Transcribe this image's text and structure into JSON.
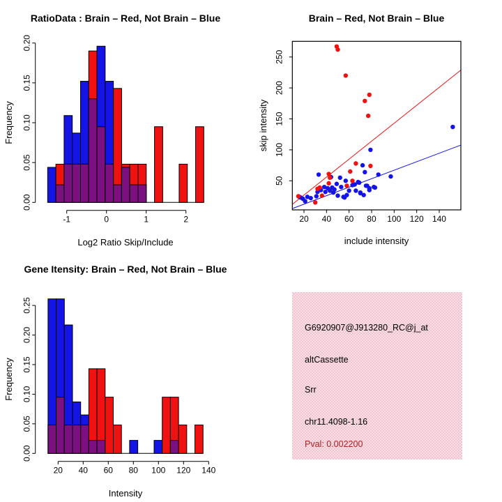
{
  "colors": {
    "blue": "#1414e6",
    "red": "#f01111",
    "purple": "#7c1080",
    "axis": "#000000"
  },
  "chart_data": [
    {
      "id": "ratio-hist",
      "type": "bar",
      "title": "RatioData : Brain – Red, Not Brain – Blue",
      "xlabel": "Log2 Ratio Skip/Include",
      "ylabel": "Frequency",
      "bin_start": -1.48,
      "bin_width": 0.2068,
      "n_bins": 19,
      "series": [
        {
          "name": "Not Brain (blue)",
          "values": [
            0.044,
            0.022,
            0.109,
            0.087,
            0.152,
            0.13,
            0.196,
            0.152,
            0.022,
            0.044,
            0.022,
            0.022,
            0,
            0,
            0,
            0,
            0,
            0,
            0
          ]
        },
        {
          "name": "Brain (red)",
          "values": [
            0,
            0.048,
            0.048,
            0.048,
            0.048,
            0.19,
            0.095,
            0.048,
            0.143,
            0.048,
            0.048,
            0.048,
            0,
            0.095,
            0,
            0,
            0.048,
            0,
            0.095
          ]
        }
      ],
      "overlap_color_note": "overlap drawn purple",
      "x_ticks": [
        -1,
        0,
        1,
        2
      ],
      "x_tick_labels": [
        "-1",
        "0",
        "1",
        "2"
      ],
      "y_ticks": [
        0,
        0.05,
        0.1,
        0.15,
        0.2
      ],
      "y_tick_labels": [
        "0.00",
        "0.05",
        "0.10",
        "0.15",
        "0.20"
      ],
      "ylim": [
        0,
        0.2
      ],
      "grid": false
    },
    {
      "id": "intensity-scatter",
      "type": "scatter",
      "title": "Brain – Red, Not Brain – Blue",
      "xlabel": "include intensity",
      "ylabel": "skip intensity",
      "xlim": [
        9.7,
        159.2
      ],
      "ylim": [
        3,
        275
      ],
      "x_ticks": [
        20,
        40,
        60,
        80,
        100,
        120,
        140
      ],
      "x_tick_labels": [
        "20",
        "40",
        "60",
        "80",
        "100",
        "120",
        "140"
      ],
      "y_ticks": [
        50,
        100,
        150,
        200,
        250
      ],
      "y_tick_labels": [
        "50",
        "100",
        "150",
        "200",
        "250"
      ],
      "series": [
        {
          "name": "Brain (red)",
          "points": [
            [
              49,
              267
            ],
            [
              50,
              262
            ],
            [
              57,
              220
            ],
            [
              74,
              179
            ],
            [
              78,
              189
            ],
            [
              77,
              155
            ],
            [
              66,
              78
            ],
            [
              79,
              74
            ],
            [
              61,
              65
            ],
            [
              42,
              61
            ],
            [
              43,
              55
            ],
            [
              63,
              50
            ],
            [
              58,
              42
            ],
            [
              42,
              46
            ],
            [
              34,
              39
            ],
            [
              32,
              37
            ],
            [
              36,
              26
            ],
            [
              30,
              15
            ],
            [
              15,
              25
            ]
          ]
        },
        {
          "name": "Not Brain (blue)",
          "points": [
            [
              152,
              137
            ],
            [
              97,
              57
            ],
            [
              86,
              60
            ],
            [
              79,
              100
            ],
            [
              72,
              75
            ],
            [
              74,
              64
            ],
            [
              33,
              60
            ],
            [
              44,
              56
            ],
            [
              52,
              55
            ],
            [
              57,
              50
            ],
            [
              68,
              48
            ],
            [
              63,
              43
            ],
            [
              75,
              42
            ],
            [
              82,
              40
            ],
            [
              78,
              35
            ],
            [
              70,
              31
            ],
            [
              53,
              40
            ],
            [
              49,
              45
            ],
            [
              38,
              40
            ],
            [
              41,
              38
            ],
            [
              35,
              35
            ],
            [
              32,
              32
            ],
            [
              39,
              32
            ],
            [
              43,
              34
            ],
            [
              45,
              39
            ],
            [
              46,
              31
            ],
            [
              47,
              36
            ],
            [
              50,
              26
            ],
            [
              55,
              24
            ],
            [
              58,
              27
            ],
            [
              56,
              23
            ],
            [
              60,
              34
            ],
            [
              65,
              44
            ],
            [
              66,
              34
            ],
            [
              69,
              47
            ],
            [
              70,
              30
            ],
            [
              73,
              27
            ],
            [
              76,
              42
            ],
            [
              78,
              38
            ],
            [
              83,
              39
            ],
            [
              23,
              24
            ],
            [
              26,
              22
            ],
            [
              19,
              21
            ],
            [
              31,
              25
            ],
            [
              21,
              17
            ],
            [
              17,
              23
            ],
            [
              16,
              24
            ]
          ]
        }
      ],
      "lines": [
        {
          "name": "brain-fit-line",
          "color_key": "red",
          "slope": 1.45,
          "intercept": -2
        },
        {
          "name": "notbrain-fit-line",
          "color_key": "blue",
          "slope": 0.686,
          "intercept": -1.5
        }
      ],
      "grid": false
    },
    {
      "id": "gene-hist",
      "type": "bar",
      "title": "Gene Itensity: Brain – Red, Not Brain – Blue",
      "xlabel": "Intensity",
      "ylabel": "Frequency",
      "bin_start": 12,
      "bin_width": 6.5,
      "n_bins": 19,
      "series": [
        {
          "name": "Not Brain (blue)",
          "values": [
            0.261,
            0.261,
            0.217,
            0.087,
            0.065,
            0.022,
            0.022,
            0,
            0,
            0,
            0.022,
            0,
            0,
            0.022,
            0,
            0.022,
            0,
            0,
            0
          ]
        },
        {
          "name": "Brain (red)",
          "values": [
            0.048,
            0.095,
            0.048,
            0.048,
            0.048,
            0.143,
            0.143,
            0.095,
            0.048,
            0,
            0,
            0,
            0,
            0,
            0.095,
            0.095,
            0.048,
            0,
            0.048
          ]
        }
      ],
      "x_ticks": [
        20,
        40,
        60,
        80,
        100,
        120,
        140
      ],
      "x_tick_labels": [
        "20",
        "40",
        "60",
        "80",
        "100",
        "120",
        "140"
      ],
      "y_ticks": [
        0,
        0.05,
        0.1,
        0.15,
        0.2,
        0.25
      ],
      "y_tick_labels": [
        "0.00",
        "0.05",
        "0.10",
        "0.15",
        "0.20",
        "0.25"
      ],
      "ylim": [
        0,
        0.26
      ],
      "grid": false
    }
  ],
  "info_panel": {
    "bg_color": "#f0c4d0",
    "probe_id": "G6920907@J913280_RC@j_at",
    "event_type": "altCassette",
    "gene": "Srr",
    "location": "chr11.4098-1.16",
    "pval_line": "Pval: 0.002200",
    "pval_color": "#aa2222"
  }
}
